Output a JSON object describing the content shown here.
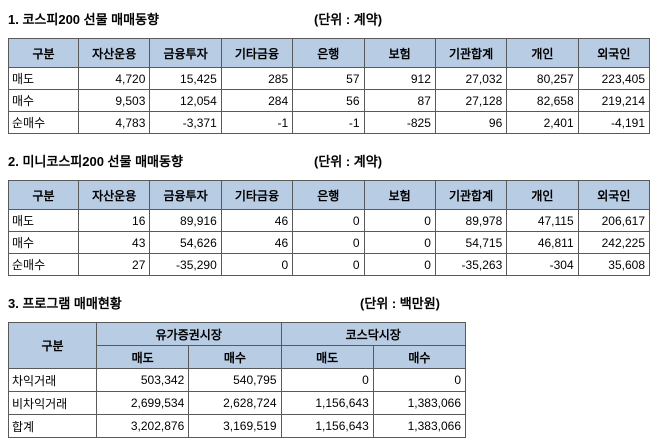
{
  "sections": [
    {
      "title": "1. 코스피200 선물 매매동향",
      "unit": "(단위 : 계약)",
      "headers": [
        "구분",
        "자산운용",
        "금융투자",
        "기타금융",
        "은행",
        "보험",
        "기관합계",
        "개인",
        "외국인"
      ],
      "rows": [
        {
          "label": "매도",
          "v": [
            "4,720",
            "15,425",
            "285",
            "57",
            "912",
            "27,032",
            "80,257",
            "223,405"
          ]
        },
        {
          "label": "매수",
          "v": [
            "9,503",
            "12,054",
            "284",
            "56",
            "87",
            "27,128",
            "82,658",
            "219,214"
          ]
        },
        {
          "label": "순매수",
          "v": [
            "4,783",
            "-3,371",
            "-1",
            "-1",
            "-825",
            "96",
            "2,401",
            "-4,191"
          ]
        }
      ]
    },
    {
      "title": "2. 미니코스피200 선물 매매동향",
      "unit": "(단위 : 계약)",
      "headers": [
        "구분",
        "자산운용",
        "금융투자",
        "기타금융",
        "은행",
        "보험",
        "기관합계",
        "개인",
        "외국인"
      ],
      "rows": [
        {
          "label": "매도",
          "v": [
            "16",
            "89,916",
            "46",
            "0",
            "0",
            "89,978",
            "47,115",
            "206,617"
          ]
        },
        {
          "label": "매수",
          "v": [
            "43",
            "54,626",
            "46",
            "0",
            "0",
            "54,715",
            "46,811",
            "242,225"
          ]
        },
        {
          "label": "순매수",
          "v": [
            "27",
            "-35,290",
            "0",
            "0",
            "0",
            "-35,263",
            "-304",
            "35,608"
          ]
        }
      ]
    },
    {
      "title": "3. 프로그램 매매현황",
      "unit": "(단위 : 백만원)",
      "corner_header": "구분",
      "group_headers": [
        "유가증권시장",
        "코스닥시장"
      ],
      "sub_headers": [
        "매도",
        "매수",
        "매도",
        "매수"
      ],
      "rows": [
        {
          "label": "차익거래",
          "v": [
            "503,342",
            "540,795",
            "0",
            "0"
          ]
        },
        {
          "label": "비차익거래",
          "v": [
            "2,699,534",
            "2,628,724",
            "1,156,643",
            "1,383,066"
          ]
        },
        {
          "label": "합계",
          "v": [
            "3,202,876",
            "3,169,519",
            "1,156,643",
            "1,383,066"
          ]
        }
      ]
    }
  ],
  "colors": {
    "header_bg": "#b8cce4",
    "border": "#595959",
    "text": "#000000",
    "background": "#ffffff"
  }
}
